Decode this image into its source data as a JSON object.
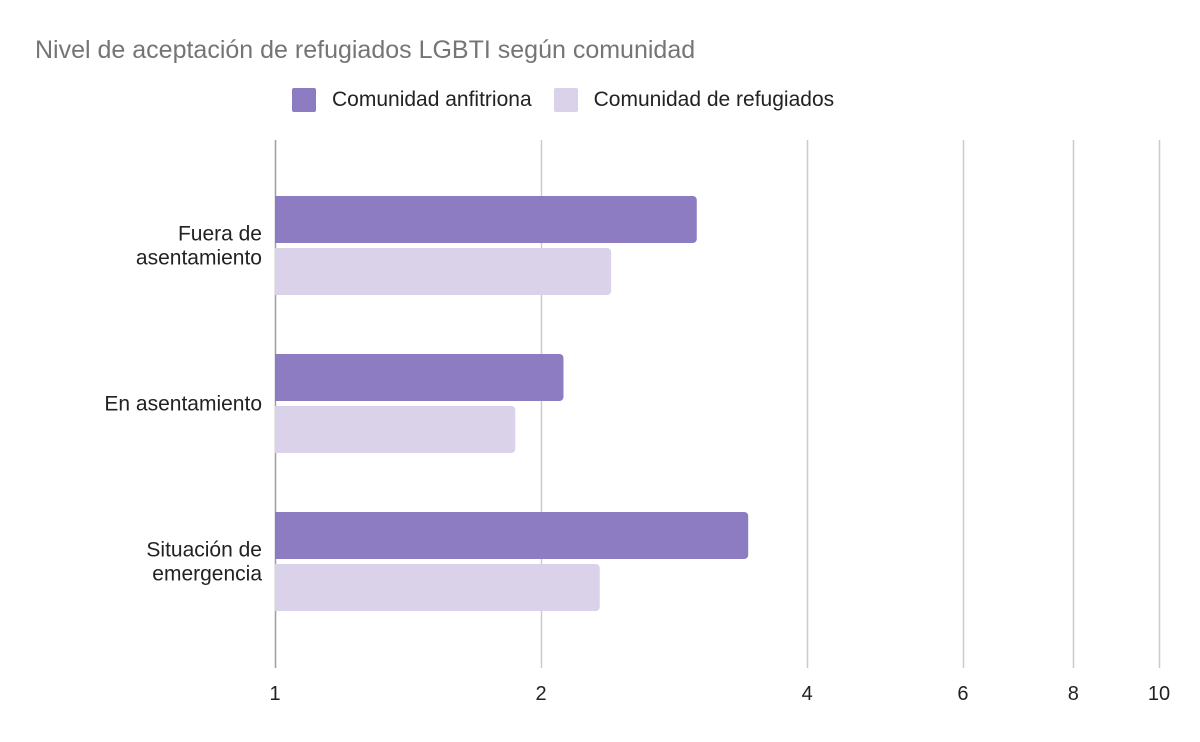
{
  "chart_data": {
    "type": "bar",
    "orientation": "horizontal",
    "title": "Nivel de aceptación de refugiados LGBTI según comunidad",
    "xlabel": "",
    "ylabel": "",
    "x_scale": "log",
    "xlim": [
      1,
      10
    ],
    "x_ticks": [
      1,
      2,
      4,
      6,
      8,
      10
    ],
    "x_tick_labels": [
      "1",
      "2",
      "4",
      "6",
      "8",
      "10"
    ],
    "grid": true,
    "legend_position": "top",
    "categories": [
      [
        "Fuera de",
        "asentamiento"
      ],
      [
        "En asentamiento"
      ],
      [
        "Situación de",
        "emergencia"
      ]
    ],
    "series": [
      {
        "name": "Comunidad anfitriona",
        "color": "#8e7cc3",
        "values": [
          3.0,
          2.12,
          3.43
        ]
      },
      {
        "name": "Comunidad de refugiados",
        "color": "#d9d2e9",
        "values": [
          2.4,
          1.87,
          2.33
        ]
      }
    ]
  }
}
